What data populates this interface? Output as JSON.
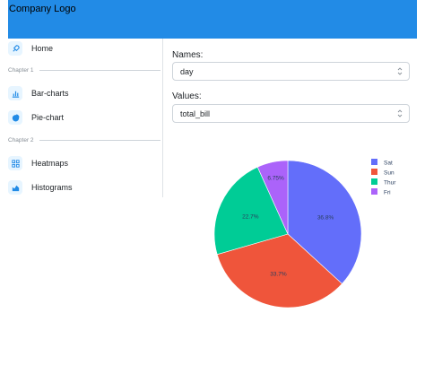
{
  "header": {
    "logo_text": "Company Logo",
    "color": "#228be6"
  },
  "sidebar": {
    "items": [
      {
        "label": "Home",
        "icon": "rocket-icon"
      },
      {
        "label": "Bar-charts",
        "icon": "bar-chart-icon"
      },
      {
        "label": "Pie-chart",
        "icon": "pie-chart-icon"
      },
      {
        "label": "Heatmaps",
        "icon": "grid-icon"
      },
      {
        "label": "Histograms",
        "icon": "area-chart-icon"
      }
    ],
    "dividers": [
      "Chapter 1",
      "Chapter 2"
    ]
  },
  "controls": {
    "names_label": "Names:",
    "names_value": "day",
    "values_label": "Values:",
    "values_value": "total_bill"
  },
  "chart_data": {
    "type": "pie",
    "labels": [
      "Sat",
      "Sun",
      "Thur",
      "Fri"
    ],
    "values": [
      36.8,
      33.7,
      22.7,
      6.75
    ],
    "value_labels": [
      "36.8%",
      "33.7%",
      "22.7%",
      "6.75%"
    ],
    "colors": [
      "#636efa",
      "#ef553b",
      "#00cc96",
      "#ab63fa"
    ],
    "legend_position": "top-right"
  }
}
